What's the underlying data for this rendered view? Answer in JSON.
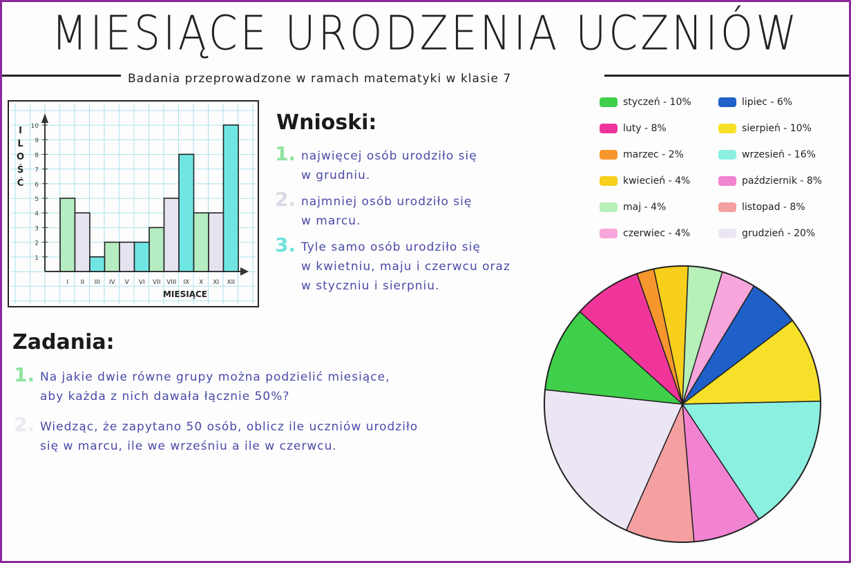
{
  "title": "MIESIĄCE URODZENIA UCZNIÓW",
  "subtitle": "Badania przeprowadzone w ramach matematyki w klasie 7",
  "conclusions": {
    "heading": "Wnioski:",
    "items": [
      {
        "num": "1.",
        "color": "#8fe3a0",
        "lines": [
          "najwięcej osób urodziło się",
          "w grudniu."
        ]
      },
      {
        "num": "2.",
        "color": "#dcd8e6",
        "lines": [
          "najmniej osób urodziło się",
          "w marcu."
        ]
      },
      {
        "num": "3.",
        "color": "#6fe3d9",
        "lines": [
          "Tyle samo osób urodziło się",
          "w kwietniu, maju i czerwcu oraz",
          "w styczniu i sierpniu."
        ]
      }
    ]
  },
  "tasks": {
    "heading": "Zadania:",
    "items": [
      {
        "num": "1.",
        "color": "#8fe3a0",
        "lines": [
          "Na jakie dwie równe grupy można podzielić miesiące,",
          "aby każda z nich dawała łącznie 50%?"
        ]
      },
      {
        "num": "2.",
        "color": "#ece8f0",
        "lines": [
          "Wiedząc, że zapytano 50 osób, oblicz ile uczniów urodziło",
          "się w marcu, ile we wrześniu a ile w czerwcu."
        ]
      }
    ]
  },
  "chart_data": [
    {
      "type": "bar",
      "xlabel": "MIESIĄCE",
      "ylabel": "ILOŚĆ",
      "categories": [
        "I",
        "II",
        "III",
        "IV",
        "V",
        "VI",
        "VII",
        "VIII",
        "IX",
        "X",
        "XI",
        "XII"
      ],
      "values": [
        5,
        4,
        1,
        2,
        2,
        2,
        3,
        5,
        8,
        4,
        4,
        10
      ],
      "bar_colors": [
        "#b5ecc2",
        "#e6e3f1",
        "#6fe6e4",
        "#b5ecc2",
        "#e6e3f1",
        "#6fe6e4",
        "#b5ecc2",
        "#e6e3f1",
        "#6fe6e4",
        "#b5ecc2",
        "#e6e3f1",
        "#6fe6e4"
      ],
      "yticks": [
        1,
        2,
        3,
        4,
        5,
        6,
        7,
        8,
        9,
        10
      ],
      "ylim": [
        0,
        10
      ],
      "grid": true
    },
    {
      "type": "pie",
      "legend_position": "above",
      "slices": [
        {
          "label": "styczeń",
          "value": 10,
          "text": "styczeń - 10%",
          "color": "#3fcf4a"
        },
        {
          "label": "luty",
          "value": 8,
          "text": "luty - 8%",
          "color": "#f0359a"
        },
        {
          "label": "marzec",
          "value": 2,
          "text": "marzec - 2%",
          "color": "#f7962c"
        },
        {
          "label": "kwiecień",
          "value": 4,
          "text": "kwiecień - 4%",
          "color": "#f7cf1c"
        },
        {
          "label": "maj",
          "value": 4,
          "text": "maj - 4%",
          "color": "#b7f0b8"
        },
        {
          "label": "czerwiec",
          "value": 4,
          "text": "czerwiec - 4%",
          "color": "#f6a6da"
        },
        {
          "label": "lipiec",
          "value": 6,
          "text": "lipiec - 6%",
          "color": "#1f5fc8"
        },
        {
          "label": "sierpień",
          "value": 10,
          "text": "sierpień - 10%",
          "color": "#f7e02a"
        },
        {
          "label": "wrzesień",
          "value": 16,
          "text": "wrzesień - 16%",
          "color": "#8cf0e0"
        },
        {
          "label": "październik",
          "value": 8,
          "text": "październik - 8%",
          "color": "#f283d2"
        },
        {
          "label": "listopad",
          "value": 8,
          "text": "listopad - 8%",
          "color": "#f5a0a0"
        },
        {
          "label": "grudzień",
          "value": 20,
          "text": "grudzień - 20%",
          "color": "#ece6f4"
        }
      ]
    }
  ]
}
